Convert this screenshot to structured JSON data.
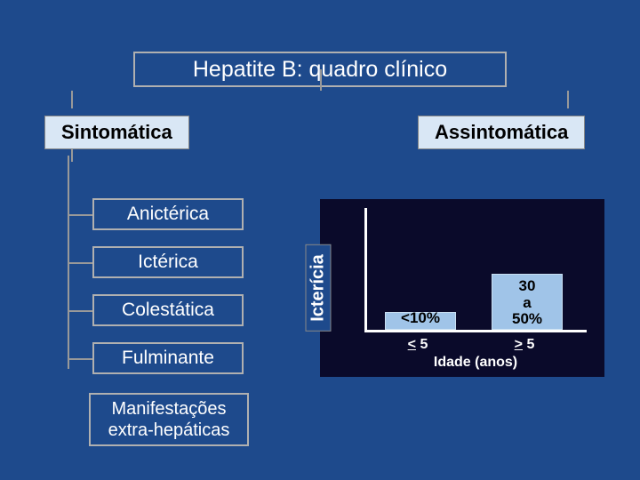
{
  "title": "Hepatite B: quadro clínico",
  "branches": {
    "left": "Sintomática",
    "right": "Assintomática"
  },
  "left_items": [
    "Anictérica",
    "Ictérica",
    "Colestática",
    "Fulminante"
  ],
  "extra_item": "Manifestações extra-hepáticas",
  "chart": {
    "type": "bar",
    "ylabel": "Icterícia",
    "xlabel": "Idade (anos)",
    "categories": [
      "< 5",
      "> 5"
    ],
    "display_labels": [
      "<10%",
      "30\na\n50%"
    ],
    "values_pct_of_axis": [
      14,
      45
    ],
    "bar_color": "#a0c4e8",
    "bar_border": "#c8dff2",
    "plot_bg": "#0a0a2a",
    "axis_color": "#ffffff",
    "label_fontsize": 17,
    "tick_fontsize": 16
  },
  "colors": {
    "page_bg": "#1e4a8c",
    "box_border": "#b0b0b0",
    "heading_bg": "#d9e7f5",
    "text_light": "#ffffff",
    "text_dark": "#000000"
  }
}
